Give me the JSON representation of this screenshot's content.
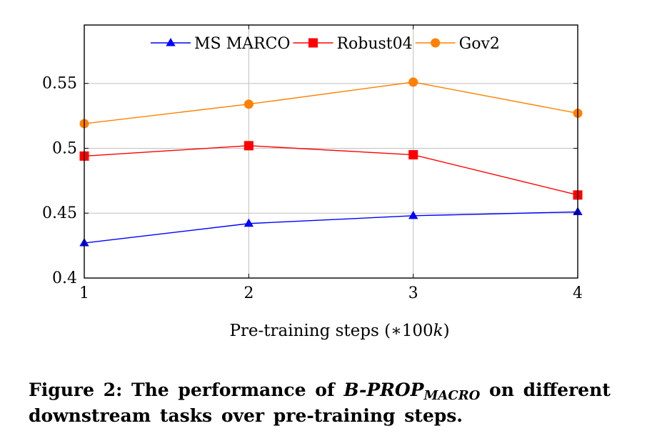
{
  "chart_data": {
    "type": "line",
    "xlabel_prefix": "Pre-training steps (∗100",
    "xlabel_k": "k",
    "xlabel_suffix": ")",
    "x": [
      1,
      2,
      3,
      4
    ],
    "x_tick_labels": [
      "1",
      "2",
      "3",
      "4"
    ],
    "y_tick_labels": [
      "0.4",
      "0.45",
      "0.5",
      "0.55"
    ],
    "y_ticks": [
      0.4,
      0.45,
      0.5,
      0.55
    ],
    "xlim": [
      1,
      4
    ],
    "ylim": [
      0.4,
      0.595
    ],
    "grid": true,
    "legend_position": "top-center",
    "series": [
      {
        "name": "MS MARCO",
        "values": [
          0.427,
          0.442,
          0.448,
          0.451
        ],
        "color": "#0000ff",
        "marker": "triangle"
      },
      {
        "name": "Robust04",
        "values": [
          0.494,
          0.502,
          0.495,
          0.464
        ],
        "color": "#ff0000",
        "marker": "square"
      },
      {
        "name": "Gov2",
        "values": [
          0.519,
          0.534,
          0.551,
          0.527
        ],
        "color": "#ff8000",
        "marker": "circle"
      }
    ]
  },
  "caption": {
    "label": "Figure 2:",
    "text_before": " The performance of ",
    "model_name": "B-PROP",
    "model_subscript": "MACRO",
    "text_after": " on different downstream tasks over pre-training steps."
  }
}
